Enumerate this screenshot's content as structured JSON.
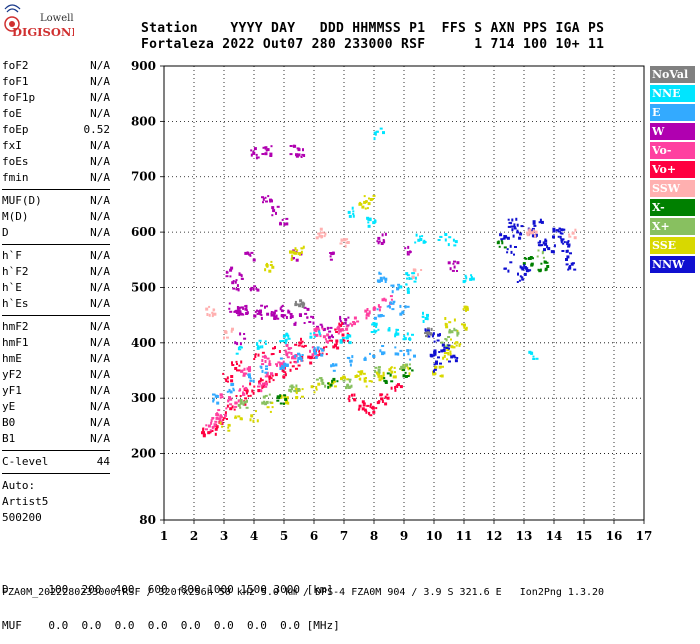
{
  "logo": {
    "line1": "Lowell",
    "line2": "DIGISONDE"
  },
  "header": {
    "labels": "Station    YYYY DAY   DDD HHMMSS P1  FFS S AXN PPS IGA PS",
    "values": "Fortaleza 2022 Out07 280 233000 RSF      1 714 100 10+ 11"
  },
  "sidebar": {
    "groups": [
      [
        {
          "k": "foF2",
          "v": "N/A"
        },
        {
          "k": "foF1",
          "v": "N/A"
        },
        {
          "k": "foF1p",
          "v": "N/A"
        },
        {
          "k": "foE",
          "v": "N/A"
        },
        {
          "k": "foEp",
          "v": "0.52"
        },
        {
          "k": "fxI",
          "v": "N/A"
        },
        {
          "k": "foEs",
          "v": "N/A"
        },
        {
          "k": "fmin",
          "v": "N/A"
        }
      ],
      [
        {
          "k": "MUF(D)",
          "v": "N/A"
        },
        {
          "k": "M(D)",
          "v": "N/A"
        },
        {
          "k": "D",
          "v": "N/A"
        }
      ],
      [
        {
          "k": "h`F",
          "v": "N/A"
        },
        {
          "k": "h`F2",
          "v": "N/A"
        },
        {
          "k": "h`E",
          "v": "N/A"
        },
        {
          "k": "h`Es",
          "v": "N/A"
        }
      ],
      [
        {
          "k": "hmF2",
          "v": "N/A"
        },
        {
          "k": "hmF1",
          "v": "N/A"
        },
        {
          "k": "hmE",
          "v": "N/A"
        },
        {
          "k": "yF2",
          "v": "N/A"
        },
        {
          "k": "yF1",
          "v": "N/A"
        },
        {
          "k": "yE",
          "v": "N/A"
        },
        {
          "k": "B0",
          "v": "N/A"
        },
        {
          "k": "B1",
          "v": "N/A"
        }
      ],
      [
        {
          "k": "C-level",
          "v": "44"
        }
      ]
    ],
    "auto": [
      "Auto:",
      "Artist5",
      "500200"
    ]
  },
  "legend": [
    {
      "label": "NoVal",
      "color": "#808080"
    },
    {
      "label": "NNE",
      "color": "#00e5ff"
    },
    {
      "label": "E",
      "color": "#33aaff"
    },
    {
      "label": "W",
      "color": "#b000b0"
    },
    {
      "label": "Vo-",
      "color": "#ff40a0"
    },
    {
      "label": "Vo+",
      "color": "#ff0040"
    },
    {
      "label": "SSW",
      "color": "#ffb0b0"
    },
    {
      "label": "X-",
      "color": "#008000"
    },
    {
      "label": "X+",
      "color": "#88c060"
    },
    {
      "label": "SSE",
      "color": "#d8d800"
    },
    {
      "label": "NNW",
      "color": "#1010d0"
    }
  ],
  "bottom": {
    "d_line": "D      100  200  400  600  800 1000 1500 3000 [km]",
    "muf_line": "MUF    0.0  0.0  0.0  0.0  0.0  0.0  0.0  0.0 [MHz]"
  },
  "footer": "FZA0M_2022280233000.RSF / 320fx256h 50 kHz 5.0 km / DPS-4 FZA0M 904 / 3.9 S 321.6 E   Ion2Png 1.3.20",
  "chart_data": {
    "type": "scatter",
    "title": "",
    "xlabel": "",
    "ylabel": "",
    "xlim": [
      1,
      17
    ],
    "ylim": [
      80,
      900
    ],
    "xticks": [
      1,
      2,
      3,
      4,
      5,
      6,
      7,
      8,
      9,
      10,
      11,
      12,
      13,
      14,
      15,
      16,
      17
    ],
    "yticks": [
      80,
      200,
      300,
      400,
      500,
      600,
      700,
      800,
      900
    ],
    "grid": true,
    "clusters": [
      {
        "name": "W",
        "color": "#b000b0",
        "points": [
          [
            3.2,
            530
          ],
          [
            3.5,
            520
          ],
          [
            3.8,
            560
          ],
          [
            3.4,
            505
          ],
          [
            4.0,
            495
          ],
          [
            3.3,
            465
          ],
          [
            3.6,
            460
          ],
          [
            4.1,
            455
          ],
          [
            4.6,
            450
          ],
          [
            5.2,
            445
          ],
          [
            5.8,
            440
          ],
          [
            6.2,
            430
          ],
          [
            6.5,
            420
          ],
          [
            7.0,
            440
          ],
          [
            4.0,
            745
          ],
          [
            4.4,
            748
          ],
          [
            5.3,
            750
          ],
          [
            5.5,
            745
          ],
          [
            4.4,
            660
          ],
          [
            4.6,
            640
          ],
          [
            4.9,
            620
          ],
          [
            5.4,
            560
          ],
          [
            6.6,
            560
          ],
          [
            9.1,
            570
          ],
          [
            10.6,
            540
          ],
          [
            8.2,
            590
          ],
          [
            3.5,
            410
          ],
          [
            3.6,
            460
          ],
          [
            4.3,
            460
          ],
          [
            4.8,
            455
          ],
          [
            5.0,
            460
          ],
          [
            5.6,
            460
          ]
        ]
      },
      {
        "name": "Vo+",
        "color": "#ff0040",
        "points": [
          [
            2.4,
            240
          ],
          [
            2.6,
            245
          ],
          [
            2.8,
            260
          ],
          [
            3.0,
            270
          ],
          [
            3.2,
            280
          ],
          [
            3.5,
            300
          ],
          [
            3.8,
            310
          ],
          [
            4.0,
            320
          ],
          [
            4.3,
            330
          ],
          [
            4.6,
            340
          ],
          [
            5.0,
            350
          ],
          [
            5.3,
            360
          ],
          [
            5.7,
            370
          ],
          [
            6.0,
            380
          ],
          [
            6.3,
            390
          ],
          [
            6.6,
            400
          ],
          [
            7.0,
            410
          ],
          [
            7.2,
            300
          ],
          [
            7.5,
            290
          ],
          [
            7.8,
            280
          ],
          [
            8.0,
            290
          ],
          [
            8.3,
            300
          ],
          [
            8.7,
            320
          ],
          [
            3.1,
            340
          ],
          [
            3.4,
            360
          ],
          [
            4.1,
            380
          ],
          [
            4.7,
            390
          ],
          [
            5.5,
            400
          ],
          [
            6.8,
            430
          ]
        ]
      },
      {
        "name": "Vo-",
        "color": "#ff40a0",
        "points": [
          [
            2.5,
            250
          ],
          [
            2.7,
            265
          ],
          [
            2.9,
            280
          ],
          [
            3.3,
            295
          ],
          [
            3.6,
            315
          ],
          [
            4.2,
            325
          ],
          [
            4.5,
            345
          ],
          [
            4.8,
            360
          ],
          [
            5.2,
            375
          ],
          [
            5.9,
            385
          ],
          [
            6.4,
            410
          ],
          [
            6.9,
            425
          ],
          [
            7.3,
            440
          ],
          [
            7.7,
            455
          ],
          [
            8.1,
            470
          ],
          [
            8.4,
            480
          ],
          [
            3.0,
            300
          ],
          [
            3.7,
            350
          ],
          [
            4.4,
            370
          ],
          [
            5.1,
            390
          ],
          [
            6.1,
            420
          ]
        ]
      },
      {
        "name": "E",
        "color": "#33aaff",
        "points": [
          [
            2.7,
            300
          ],
          [
            3.2,
            320
          ],
          [
            3.8,
            340
          ],
          [
            4.3,
            355
          ],
          [
            4.9,
            365
          ],
          [
            5.5,
            375
          ],
          [
            6.1,
            385
          ],
          [
            6.7,
            360
          ],
          [
            7.2,
            370
          ],
          [
            7.8,
            380
          ],
          [
            8.3,
            390
          ],
          [
            8.8,
            385
          ],
          [
            9.2,
            380
          ],
          [
            8.1,
            455
          ],
          [
            8.5,
            470
          ],
          [
            9.0,
            460
          ],
          [
            8.2,
            520
          ],
          [
            8.7,
            500
          ]
        ]
      },
      {
        "name": "NNE",
        "color": "#00e5ff",
        "points": [
          [
            3.5,
            390
          ],
          [
            4.2,
            400
          ],
          [
            5.0,
            410
          ],
          [
            6.0,
            420
          ],
          [
            7.0,
            410
          ],
          [
            8.0,
            430
          ],
          [
            8.6,
            420
          ],
          [
            9.1,
            410
          ],
          [
            9.0,
            500
          ],
          [
            9.2,
            520
          ],
          [
            9.5,
            590
          ],
          [
            10.2,
            590
          ],
          [
            10.6,
            585
          ],
          [
            8.1,
            780
          ],
          [
            9.6,
            450
          ],
          [
            11.1,
            520
          ],
          [
            13.3,
            380
          ],
          [
            7.2,
            640
          ],
          [
            7.9,
            620
          ]
        ]
      },
      {
        "name": "SSE",
        "color": "#d8d800",
        "points": [
          [
            3.0,
            250
          ],
          [
            3.5,
            260
          ],
          [
            4.0,
            270
          ],
          [
            4.5,
            285
          ],
          [
            5.0,
            300
          ],
          [
            5.5,
            310
          ],
          [
            6.0,
            320
          ],
          [
            6.5,
            330
          ],
          [
            7.0,
            340
          ],
          [
            7.5,
            345
          ],
          [
            7.8,
            330
          ],
          [
            8.2,
            340
          ],
          [
            8.6,
            350
          ],
          [
            9.0,
            355
          ],
          [
            10.1,
            350
          ],
          [
            10.4,
            380
          ],
          [
            10.7,
            400
          ],
          [
            10.9,
            430
          ],
          [
            11.0,
            460
          ],
          [
            10.5,
            440
          ],
          [
            4.5,
            540
          ],
          [
            5.2,
            560
          ],
          [
            5.5,
            570
          ],
          [
            7.6,
            650
          ],
          [
            7.8,
            660
          ]
        ]
      },
      {
        "name": "X+",
        "color": "#88c060",
        "points": [
          [
            3.6,
            290
          ],
          [
            4.4,
            300
          ],
          [
            5.3,
            320
          ],
          [
            6.2,
            330
          ],
          [
            7.1,
            330
          ],
          [
            8.1,
            350
          ],
          [
            9.0,
            360
          ],
          [
            10.3,
            400
          ],
          [
            10.6,
            420
          ],
          [
            13.5,
            560
          ]
        ]
      },
      {
        "name": "X-",
        "color": "#008000",
        "points": [
          [
            4.9,
            300
          ],
          [
            6.6,
            330
          ],
          [
            8.4,
            340
          ],
          [
            9.1,
            350
          ],
          [
            12.2,
            580
          ],
          [
            13.1,
            550
          ],
          [
            13.6,
            540
          ]
        ]
      },
      {
        "name": "NNW",
        "color": "#1010d0",
        "points": [
          [
            9.8,
            420
          ],
          [
            10.0,
            410
          ],
          [
            10.1,
            360
          ],
          [
            10.0,
            380
          ],
          [
            10.3,
            390
          ],
          [
            10.6,
            370
          ],
          [
            12.3,
            590
          ],
          [
            12.5,
            570
          ],
          [
            12.4,
            540
          ],
          [
            12.7,
            600
          ],
          [
            12.8,
            610
          ],
          [
            13.2,
            600
          ],
          [
            13.4,
            620
          ],
          [
            13.6,
            580
          ],
          [
            13.9,
            570
          ],
          [
            14.1,
            600
          ],
          [
            14.3,
            580
          ],
          [
            14.4,
            560
          ],
          [
            14.5,
            540
          ],
          [
            12.6,
            620
          ],
          [
            13.0,
            540
          ],
          [
            14.2,
            600
          ],
          [
            12.9,
            520
          ]
        ]
      },
      {
        "name": "SSW",
        "color": "#ffb0b0",
        "points": [
          [
            2.5,
            460
          ],
          [
            3.1,
            420
          ],
          [
            6.2,
            600
          ],
          [
            7.0,
            580
          ],
          [
            9.4,
            530
          ],
          [
            14.6,
            600
          ],
          [
            13.2,
            600
          ]
        ]
      },
      {
        "name": "NoVal",
        "color": "#808080",
        "points": [
          [
            9.8,
            420
          ],
          [
            5.5,
            470
          ]
        ]
      }
    ]
  }
}
